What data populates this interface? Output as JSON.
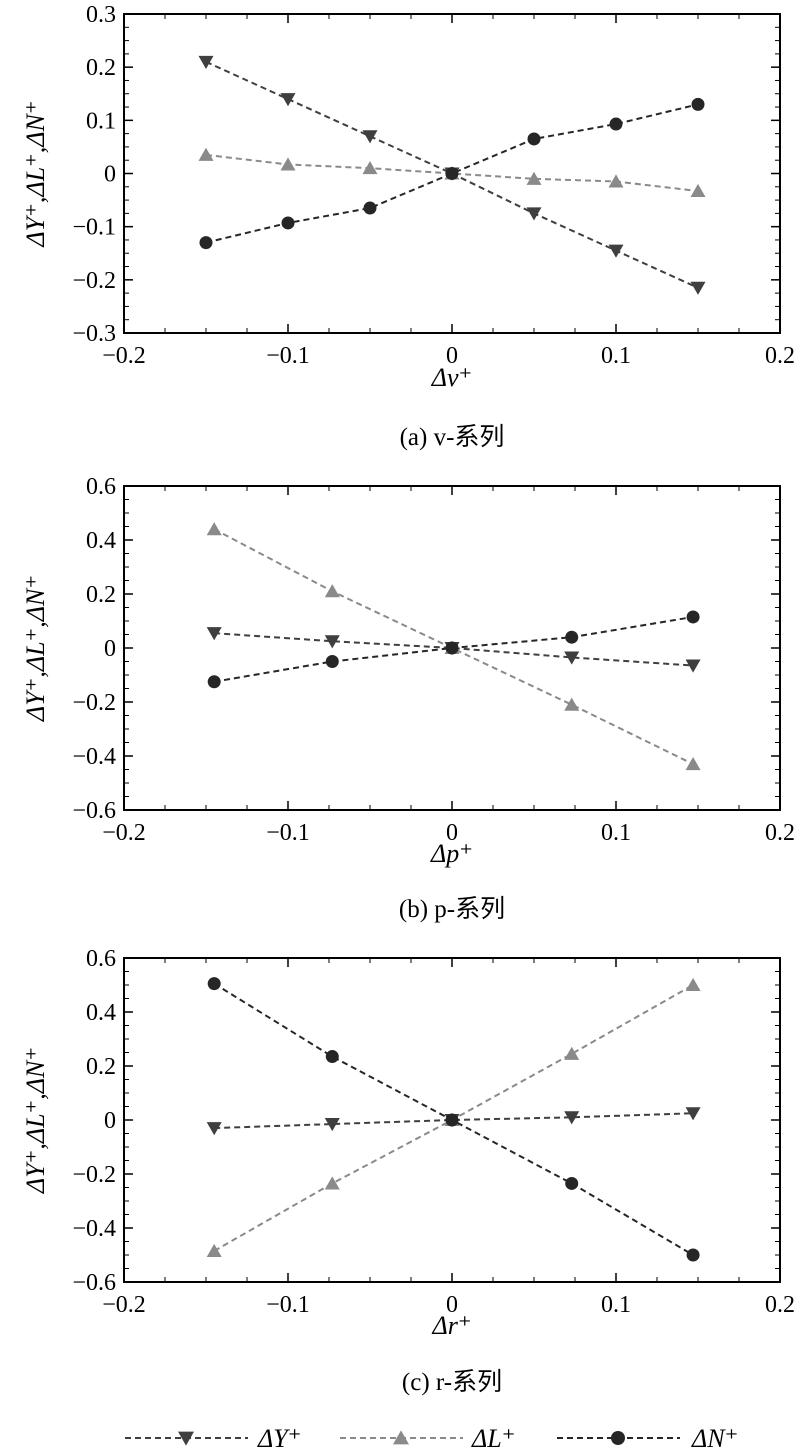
{
  "colors": {
    "dY": "#3f3f3f",
    "dL": "#8a8a8a",
    "dN": "#262626",
    "frame": "#000000",
    "background": "#ffffff"
  },
  "legend": {
    "placement": "bottom",
    "entries": [
      {
        "key": "dY",
        "label": "ΔY⁺",
        "marker": "triangle-down",
        "color": "#3f3f3f"
      },
      {
        "key": "dL",
        "label": "ΔL⁺",
        "marker": "triangle-up",
        "color": "#8a8a8a"
      },
      {
        "key": "dN",
        "label": "ΔN⁺",
        "marker": "circle",
        "color": "#262626"
      }
    ]
  },
  "chart_data": [
    {
      "type": "line",
      "caption": "(a) v-系列",
      "xlabel": "Δv⁺",
      "ylabel": "ΔY⁺,ΔL⁺,ΔN⁺",
      "xlim": [
        -0.2,
        0.2
      ],
      "ylim": [
        -0.3,
        0.3
      ],
      "xticks": [
        -0.2,
        -0.1,
        0,
        0.1,
        0.2
      ],
      "xtick_labels": [
        "−0.2",
        "−0.1",
        "0",
        "0.1",
        "0.2"
      ],
      "yticks": [
        -0.3,
        -0.2,
        -0.1,
        0,
        0.1,
        0.2,
        0.3
      ],
      "ytick_labels": [
        "−0.3",
        "−0.2",
        "−0.1",
        "0",
        "0.1",
        "0.2",
        "0.3"
      ],
      "grid": false,
      "x": [
        -0.15,
        -0.1,
        -0.05,
        0,
        0.05,
        0.1,
        0.15
      ],
      "series": [
        {
          "key": "dY",
          "values": [
            0.21,
            0.14,
            0.07,
            0,
            -0.075,
            -0.145,
            -0.215
          ]
        },
        {
          "key": "dL",
          "values": [
            0.035,
            0.017,
            0.01,
            0,
            -0.01,
            -0.015,
            -0.033
          ]
        },
        {
          "key": "dN",
          "values": [
            -0.13,
            -0.093,
            -0.065,
            0,
            0.065,
            0.093,
            0.13
          ]
        }
      ]
    },
    {
      "type": "line",
      "caption": "(b) p-系列",
      "xlabel": "Δp⁺",
      "ylabel": "ΔY⁺,ΔL⁺,ΔN⁺",
      "xlim": [
        -0.2,
        0.2
      ],
      "ylim": [
        -0.6,
        0.6
      ],
      "xticks": [
        -0.2,
        -0.1,
        0,
        0.1,
        0.2
      ],
      "xtick_labels": [
        "−0.2",
        "−0.1",
        "0",
        "0.1",
        "0.2"
      ],
      "yticks": [
        -0.6,
        -0.4,
        -0.2,
        0,
        0.2,
        0.4,
        0.6
      ],
      "ytick_labels": [
        "−0.6",
        "−0.4",
        "−0.2",
        "0",
        "0.2",
        "0.4",
        "0.6"
      ],
      "grid": false,
      "x": [
        -0.145,
        -0.073,
        0,
        0.073,
        0.147
      ],
      "series": [
        {
          "key": "dY",
          "values": [
            0.055,
            0.025,
            0,
            -0.035,
            -0.065
          ]
        },
        {
          "key": "dL",
          "values": [
            0.44,
            0.21,
            0,
            -0.21,
            -0.43
          ]
        },
        {
          "key": "dN",
          "values": [
            -0.125,
            -0.05,
            0,
            0.04,
            0.115
          ]
        }
      ]
    },
    {
      "type": "line",
      "caption": "(c) r-系列",
      "xlabel": "Δr⁺",
      "ylabel": "ΔY⁺,ΔL⁺,ΔN⁺",
      "xlim": [
        -0.2,
        0.2
      ],
      "ylim": [
        -0.6,
        0.6
      ],
      "xticks": [
        -0.2,
        -0.1,
        0,
        0.1,
        0.2
      ],
      "xtick_labels": [
        "−0.2",
        "−0.1",
        "0",
        "0.1",
        "0.2"
      ],
      "yticks": [
        -0.6,
        -0.4,
        -0.2,
        0,
        0.2,
        0.4,
        0.6
      ],
      "ytick_labels": [
        "−0.6",
        "−0.4",
        "−0.2",
        "0",
        "0.2",
        "0.4",
        "0.6"
      ],
      "grid": false,
      "x": [
        -0.145,
        -0.073,
        0,
        0.073,
        0.147
      ],
      "series": [
        {
          "key": "dY",
          "values": [
            -0.03,
            -0.015,
            0,
            0.01,
            0.025
          ]
        },
        {
          "key": "dL",
          "values": [
            -0.485,
            -0.235,
            0,
            0.245,
            0.5
          ]
        },
        {
          "key": "dN",
          "values": [
            0.505,
            0.235,
            0,
            -0.235,
            -0.5
          ]
        }
      ]
    }
  ]
}
